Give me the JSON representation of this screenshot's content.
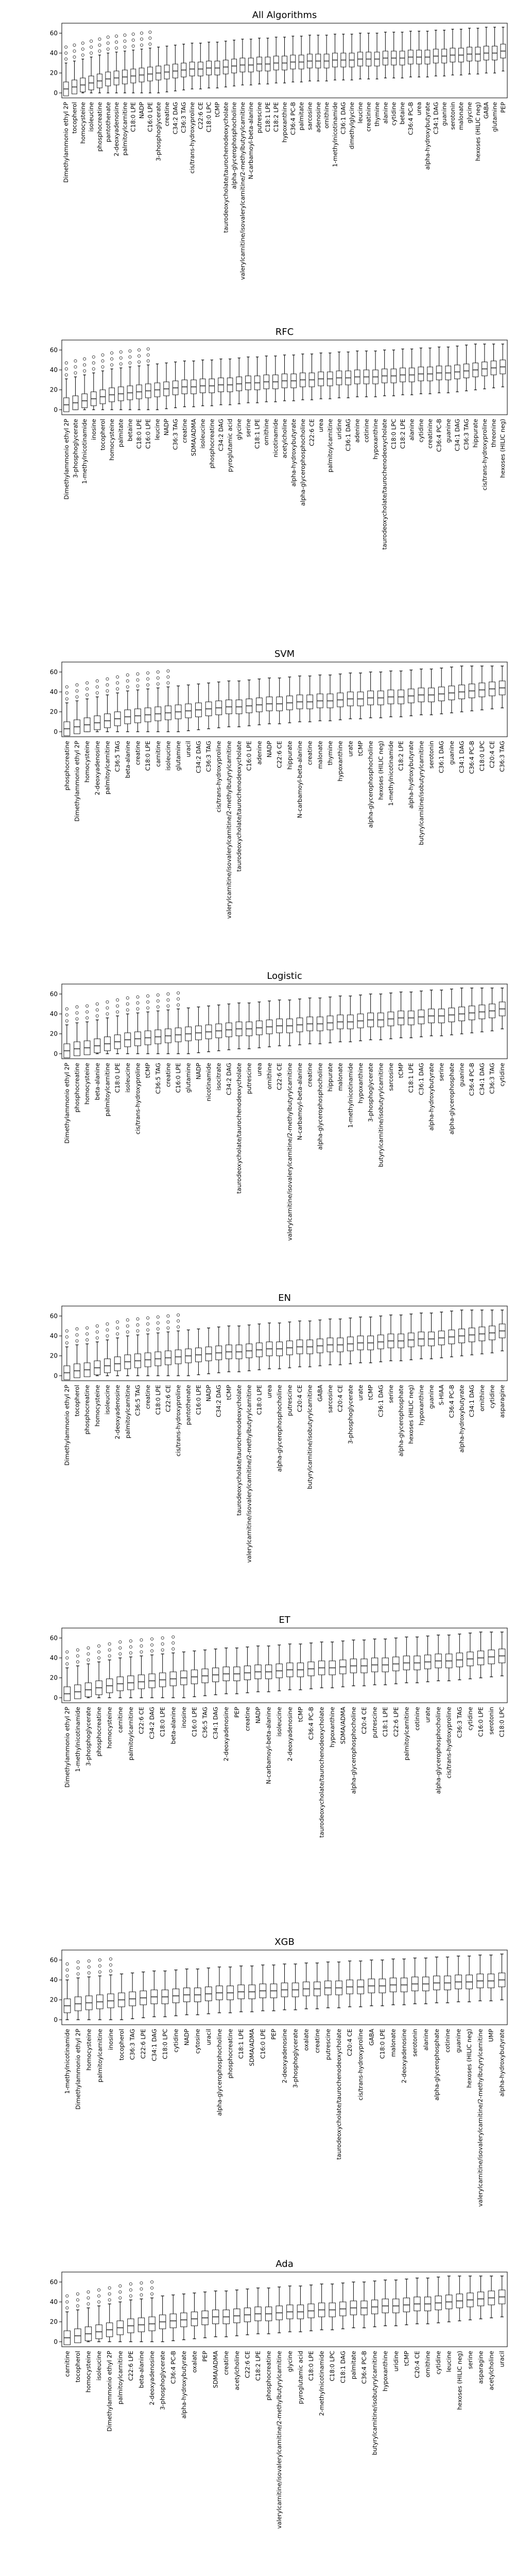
{
  "chart_data": [
    {
      "type": "box",
      "title": "All Algorithms",
      "ylim": [
        -5,
        70
      ],
      "yticks": [
        0,
        20,
        40,
        60
      ],
      "categories": [
        "Dimethylammonio ethyl 2P",
        "tocopherol",
        "homocysteine",
        "isoleucine",
        "phosphocreatine",
        "pantothenate",
        "2-deoxyadenosine",
        "palmitoylcarnitine",
        "C18:0 LPE",
        "NADP",
        "C16:0 LPE",
        "3-phosphoglycerate",
        "creatine",
        "C34:2 DAG",
        "C36:3 TAG",
        "cis/trans-hydroxyproline",
        "C22:6 CE",
        "C18:0 LPC",
        "tCMP",
        "taurodeoxycholate/taurochenodeoxycholate",
        "alpha-glycerophosphocholine",
        "valerylcarnitine/isovalerylcarnitine/2-methylbutyrylcarnitine",
        "N-carbamoyl-beta-alanine",
        "putrescine",
        "C18:1 LPE",
        "C18:2 LPE",
        "hypoxanthine",
        "C36:4 PC-B",
        "palmitate",
        "sarcosine",
        "adenosine",
        "ornithine",
        "1-methylnicotinamide",
        "C36:1 DAG",
        "dimethylglycine",
        "leucine",
        "creatinine",
        "thymine",
        "alanine",
        "cytidine",
        "betaine",
        "C36:4 PC-B",
        "urea",
        "alpha-hydroxybutyrate",
        "C34:1 DAG",
        "guanine",
        "serotonin",
        "malonate",
        "glycine",
        "hexoses (HILIC neg)",
        "GABA",
        "glutamine",
        "PEP"
      ],
      "medians": [
        4,
        6,
        8,
        10,
        12,
        14,
        15,
        16,
        17,
        18,
        19,
        20,
        21,
        22,
        23,
        24,
        24,
        25,
        25,
        26,
        27,
        28,
        28,
        29,
        29,
        30,
        30,
        31,
        31,
        32,
        32,
        32,
        33,
        33,
        33,
        34,
        34,
        34,
        35,
        35,
        35,
        36,
        36,
        36,
        37,
        37,
        38,
        38,
        39,
        39,
        40,
        40,
        42
      ]
    },
    {
      "type": "box",
      "title": "RFC",
      "ylim": [
        -5,
        70
      ],
      "yticks": [
        0,
        20,
        40,
        60
      ],
      "categories": [
        "Dimethylammonio ethyl 2P",
        "3-phosphoglycerate",
        "1-methylnicotinamide",
        "inosine",
        "tocopherol",
        "homocysteine",
        "palmitate",
        "betaine",
        "C18:0 LPE",
        "C16:0 LPE",
        "leucine",
        "NADP",
        "C36:3 TAG",
        "creatine",
        "SDMA/ADMA",
        "isoleucine",
        "phosphocreatine",
        "C34:2 DAG",
        "pyroglutamic acid",
        "glycine",
        "serine",
        "C18:1 LPE",
        "ornithine",
        "nicotinamide",
        "acetylcholine",
        "alpha-hydroxybutyrate",
        "alpha-glycerophosphocholine",
        "C22:6 CE",
        "urea",
        "palmitoylcarnitine",
        "uridine",
        "C36:1 DAG",
        "adenine",
        "cotinine",
        "hypoxanthine",
        "taurodeoxycholate/taurochenodeoxycholate",
        "C18:0 LPC",
        "C18:2 LPE",
        "alanine",
        "cytidine",
        "creatinine",
        "C36:4 PC-B",
        "guanine",
        "C34:1 DAG",
        "C36:3 TAG",
        "hippurate",
        "cis/trans-hydroxyproline",
        "threonine",
        "hexoses (HILIC neg)"
      ],
      "medians": [
        5,
        7,
        9,
        11,
        13,
        15,
        16,
        17,
        18,
        19,
        20,
        21,
        22,
        23,
        23,
        24,
        24,
        25,
        25,
        26,
        27,
        27,
        28,
        28,
        29,
        29,
        30,
        30,
        31,
        31,
        32,
        32,
        33,
        33,
        33,
        34,
        34,
        35,
        35,
        36,
        36,
        37,
        37,
        38,
        39,
        40,
        41,
        42,
        43
      ]
    },
    {
      "type": "box",
      "title": "SVM",
      "ylim": [
        -5,
        70
      ],
      "yticks": [
        0,
        20,
        40,
        60
      ],
      "categories": [
        "phosphocreatine",
        "Dimethylammonio ethyl 2P",
        "homocysteine",
        "2-deoxyadenosine",
        "palmitoylcarnitine",
        "C36:5 TAG",
        "beta-alanine",
        "creatine",
        "C18:0 LPE",
        "carnitine",
        "isoleucine",
        "glutamine",
        "uracil",
        "C34:2 DAG",
        "C36:3 TAG",
        "cis/trans-hydroxyproline",
        "valerylcarnitine/isovalerylcarnitine/2-methylbutyrylcarnitine",
        "taurodeoxycholate/taurochenodeoxycholate",
        "C16:0 LPE",
        "adenine",
        "NADP",
        "C22:6 CE",
        "hippurate",
        "N-carbamoyl-beta-alanine",
        "creatine",
        "malonate",
        "thymine",
        "hypoxanthine",
        "urate",
        "tCMP",
        "alpha-glycerophosphocholine",
        "hexoses (HILIC neg)",
        "1-methylnicotinamide",
        "C18:2 LPE",
        "alpha-hydroxybutyrate",
        "butyrylcarnitine/isobutyrylcarnitine",
        "serotonin",
        "C36:1 DAG",
        "guanine",
        "C34:1 DAG",
        "C36:4 PC-B",
        "C18:0 LPC",
        "C20:4 CE",
        "C36:3 TAG"
      ],
      "medians": [
        3,
        5,
        7,
        9,
        11,
        13,
        15,
        16,
        17,
        18,
        19,
        20,
        21,
        22,
        23,
        24,
        25,
        25,
        26,
        27,
        28,
        28,
        29,
        30,
        30,
        31,
        31,
        32,
        33,
        33,
        34,
        34,
        35,
        35,
        36,
        37,
        37,
        38,
        39,
        40,
        41,
        42,
        43,
        44
      ]
    },
    {
      "type": "box",
      "title": "Logistic",
      "ylim": [
        -5,
        70
      ],
      "yticks": [
        0,
        20,
        40,
        60
      ],
      "categories": [
        "Dimethylammonio ethyl 2P",
        "phosphocreatine",
        "homocysteine",
        "beta-alanine",
        "palmitoylcarnitine",
        "C18:0 LPE",
        "isoleucine",
        "cis/trans-hydroxyproline",
        "tCMP",
        "C36:5 TAG",
        "creatine",
        "C16:0 LPE",
        "glutamine",
        "NADP",
        "nicotinamide",
        "isocitrate",
        "C34:2 DAG",
        "taurodeoxycholate/taurochenodeoxycholate",
        "putrescine",
        "urea",
        "ornithine",
        "C22:6 CE",
        "valerylcarnitine/isovalerylcarnitine/2-methylbutyrylcarnitine",
        "N-carbamoyl-beta-alanine",
        "creatine",
        "alpha-glycerophosphocholine",
        "hippurate",
        "malonate",
        "1-methylnicotinamide",
        "hypoxanthine",
        "3-phosphoglycerate",
        "butyrylcarnitine/isobutyrylcarnitine",
        "sarcosine",
        "tCMP",
        "C18:1 LPE",
        "C36:1 DAG",
        "alpha-hydroxybutyrate",
        "serine",
        "alpha-glycerophosphate",
        "guanine",
        "C36:4 PC-B",
        "C34:1 DAG",
        "C36:3 TAG",
        "cytidine"
      ],
      "medians": [
        3,
        5,
        6,
        8,
        10,
        12,
        14,
        15,
        16,
        17,
        18,
        19,
        20,
        21,
        22,
        23,
        24,
        25,
        25,
        26,
        27,
        28,
        28,
        29,
        30,
        30,
        31,
        32,
        32,
        33,
        34,
        34,
        35,
        36,
        36,
        37,
        38,
        38,
        39,
        40,
        41,
        42,
        43,
        45
      ]
    },
    {
      "type": "box",
      "title": "EN",
      "ylim": [
        -5,
        70
      ],
      "yticks": [
        0,
        20,
        40,
        60
      ],
      "categories": [
        "Dimethylammonio ethyl 2P",
        "tocopherol",
        "phosphocreatine",
        "homocysteine",
        "isoleucine",
        "2-deoxyadenosine",
        "palmitoylcarnitine",
        "C36:5 TAG",
        "creatine",
        "C18:0 LPE",
        "C22:6 CE",
        "cis/trans-hydroxyproline",
        "pantothenate",
        "C16:0 LPE",
        "NADP",
        "C34:2 DAG",
        "tCMP",
        "taurodeoxycholate/taurochenodeoxycholate",
        "valerylcarnitine/isovalerylcarnitine/2-methylbutyrylcarnitine",
        "C18:0 LPE",
        "urea",
        "alpha-glycerophosphocholine",
        "putrescine",
        "C20:4 CE",
        "butyrylcarnitine/isobutyrylcarnitine",
        "GABA",
        "sarcosine",
        "C20:4 CE",
        "3-phosphoglycerate",
        "urate",
        "tCMP",
        "C36:1 DAG",
        "serine",
        "alpha-glycerophosphate",
        "hexoses (HILIC neg)",
        "hypoxanthine",
        "guanine",
        "S-HIAA",
        "C36:4 PC-B",
        "alpha-hydroxybutyrate",
        "C34:1 DAG",
        "ornithine",
        "cytidine",
        "asparagine"
      ],
      "medians": [
        3,
        5,
        6,
        8,
        10,
        12,
        14,
        15,
        16,
        17,
        18,
        19,
        20,
        21,
        22,
        23,
        24,
        24,
        25,
        26,
        27,
        27,
        28,
        29,
        29,
        30,
        31,
        31,
        32,
        33,
        33,
        34,
        35,
        35,
        36,
        37,
        37,
        38,
        39,
        40,
        41,
        42,
        43,
        45
      ]
    },
    {
      "type": "box",
      "title": "ET",
      "ylim": [
        -5,
        70
      ],
      "yticks": [
        0,
        20,
        40,
        60
      ],
      "categories": [
        "Dimethylammonio ethyl 2P",
        "1-methylnicotinamide",
        "3-phosphoglycerate",
        "phosphocreatine",
        "homocysteine",
        "carnitine",
        "palmitoylcarnitine",
        "C22:6 CE",
        "C34:2 DAG",
        "C18:0 LPE",
        "beta-alanine",
        "inosine",
        "C16:0 LPE",
        "C36:5 TAG",
        "C34:1 DAG",
        "2-deoxyadenosine",
        "PEP",
        "creatine",
        "NADP",
        "N-carbamoyl-beta-alanine",
        "isoleucine",
        "2-deoxyadenosine",
        "tCMP",
        "C36:4 PC-B",
        "taurodeoxycholate/taurochenodeoxycholate",
        "hypoxanthine",
        "SDMA/ADMA",
        "alpha-glycerophosphocholine",
        "C20:4 CE",
        "putrescine",
        "C18:1 LPE",
        "C22:6 LPE",
        "palmitoylcarnitine",
        "cotinine",
        "urate",
        "alpha-glycerophosphocholine",
        "cis/trans-hydroxyproline",
        "C36:3 TAG",
        "cytidine",
        "C16:0 LPE",
        "serotonin",
        "C18:0 LPC"
      ],
      "medians": [
        4,
        6,
        8,
        10,
        12,
        14,
        15,
        16,
        17,
        18,
        19,
        20,
        21,
        22,
        23,
        24,
        24,
        25,
        26,
        26,
        27,
        28,
        28,
        29,
        30,
        30,
        31,
        32,
        32,
        33,
        33,
        34,
        35,
        35,
        36,
        37,
        37,
        38,
        39,
        40,
        41,
        42
      ]
    },
    {
      "type": "box",
      "title": "XGB",
      "ylim": [
        -5,
        70
      ],
      "yticks": [
        0,
        20,
        40,
        60
      ],
      "categories": [
        "1-methylnicotinamide",
        "Dimethylammonio ethyl 2P",
        "homocysteine",
        "palmitoylcarnitine",
        "inosine",
        "tocopherol",
        "C36:3 TAG",
        "C22:6 LPE",
        "C34:1 DAG",
        "C18:0 LPC",
        "cytidine",
        "NADP",
        "cytosine",
        "uracil",
        "alpha-glycerophosphocholine",
        "phosphocreatine",
        "C18:1 LPE",
        "SDMA/ADMA",
        "C16:0 LPE",
        "PEP",
        "2-deoxyadenosine",
        "3-phosphoglycerate",
        "oxalate",
        "creatine",
        "putrescine",
        "taurodeoxycholate/taurochenodeoxycholate",
        "C20:4 CE",
        "cis/trans-hydroxyproline",
        "GABA",
        "C18:0 LPE",
        "malonate",
        "2-deoxyadenosine",
        "serotonin",
        "alanine",
        "alpha-glycerophosphate",
        "cotinine",
        "guanine",
        "hexoses (HILIC neg)",
        "valerylcarnitine/isovalerylcarnitine/2-methylbutyrylcarnitine",
        "UMP",
        "alpha-hydroxybutyrate"
      ],
      "medians": [
        14,
        16,
        17,
        18,
        19,
        20,
        21,
        22,
        23,
        23,
        24,
        25,
        25,
        26,
        27,
        27,
        28,
        28,
        29,
        29,
        30,
        30,
        31,
        31,
        32,
        32,
        33,
        33,
        34,
        34,
        35,
        35,
        36,
        36,
        37,
        37,
        38,
        38,
        39,
        39,
        40
      ]
    },
    {
      "type": "box",
      "title": "Ada",
      "ylim": [
        -5,
        70
      ],
      "yticks": [
        0,
        20,
        40,
        60
      ],
      "categories": [
        "carnitine",
        "tocopherol",
        "homocysteine",
        "isoleucine",
        "Dimethylammonio ethyl 2P",
        "palmitoylcarnitine",
        "C22:6 LPE",
        "beta-alanine",
        "2-deoxyadenosine",
        "3-phosphoglycerate",
        "C36:4 PC-B",
        "alpha-hydroxybutyrate",
        "oxalate",
        "PEP",
        "SDMA/ADMA",
        "creatine",
        "acetylcholine",
        "C22:6 CE",
        "C18:2 LPE",
        "phosphocreatine",
        "valerylcarnitine/isovalerylcarnitine/2-methylbutyrylcarnitine",
        "glycine",
        "pyroglutamic acid",
        "C18:0 LPE",
        "2-methylnicotinamide",
        "C18:0 LPC",
        "C18:1 DAG",
        "palmitate",
        "C36:4 PC-B",
        "butyrylcarnitine/isobutyrylcarnitine",
        "hypoxanthine",
        "uridine",
        "tCMP",
        "C20:4 CE",
        "ornithine",
        "cytidine",
        "leucine",
        "hexoses (HILIC neg)",
        "serine",
        "asparagine",
        "acetylcholine",
        "uracil"
      ],
      "medians": [
        4,
        6,
        8,
        10,
        12,
        14,
        16,
        17,
        18,
        20,
        21,
        22,
        23,
        24,
        25,
        25,
        26,
        27,
        28,
        28,
        29,
        30,
        30,
        31,
        32,
        32,
        33,
        34,
        34,
        35,
        36,
        36,
        37,
        38,
        38,
        39,
        40,
        41,
        42,
        43,
        44,
        45
      ]
    }
  ]
}
